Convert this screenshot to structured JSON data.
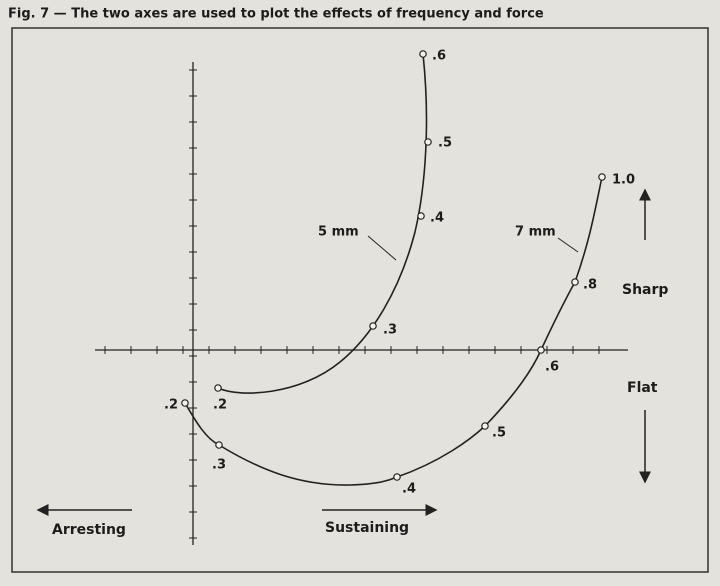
{
  "title": "Fig. 7 — The two axes are used to plot the effects of frequency and force",
  "curves": [
    {
      "label": "5 mm",
      "points": [
        ".2",
        ".3",
        ".4",
        ".5",
        ".6"
      ]
    },
    {
      "label": "7 mm",
      "points": [
        ".2",
        ".3",
        ".4",
        ".5",
        ".6",
        ".8",
        "1.0"
      ]
    }
  ],
  "directions": {
    "up": "Sharp",
    "down": "Flat",
    "left": "Arresting",
    "right": "Sustaining"
  }
}
